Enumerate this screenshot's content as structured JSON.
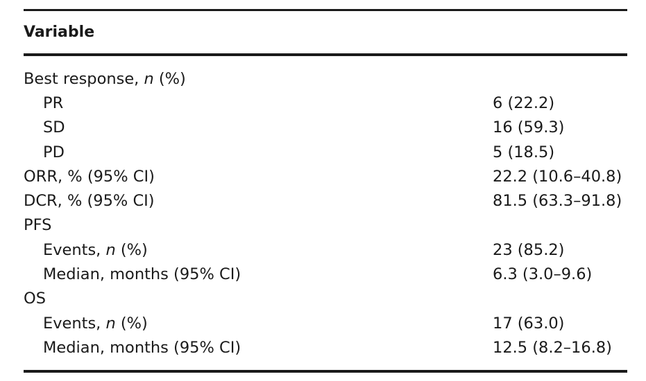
{
  "table": {
    "header": "Variable",
    "rows": [
      {
        "indent": false,
        "label_pre": "Best response, ",
        "label_italic": "n",
        "label_post": " (%)",
        "value": ""
      },
      {
        "indent": true,
        "label_pre": "PR",
        "label_italic": "",
        "label_post": "",
        "value": "6 (22.2)"
      },
      {
        "indent": true,
        "label_pre": "SD",
        "label_italic": "",
        "label_post": "",
        "value": "16 (59.3)"
      },
      {
        "indent": true,
        "label_pre": "PD",
        "label_italic": "",
        "label_post": "",
        "value": "5 (18.5)"
      },
      {
        "indent": false,
        "label_pre": "ORR, % (95% CI)",
        "label_italic": "",
        "label_post": "",
        "value": "22.2 (10.6–40.8)"
      },
      {
        "indent": false,
        "label_pre": "DCR, % (95% CI)",
        "label_italic": "",
        "label_post": "",
        "value": "81.5 (63.3–91.8)"
      },
      {
        "indent": false,
        "label_pre": "PFS",
        "label_italic": "",
        "label_post": "",
        "value": ""
      },
      {
        "indent": true,
        "label_pre": "Events, ",
        "label_italic": "n",
        "label_post": " (%)",
        "value": "23 (85.2)"
      },
      {
        "indent": true,
        "label_pre": "Median, months (95% CI)",
        "label_italic": "",
        "label_post": "",
        "value": "6.3 (3.0–9.6)"
      },
      {
        "indent": false,
        "label_pre": "OS",
        "label_italic": "",
        "label_post": "",
        "value": ""
      },
      {
        "indent": true,
        "label_pre": "Events, ",
        "label_italic": "n",
        "label_post": " (%)",
        "value": "17 (63.0)"
      },
      {
        "indent": true,
        "label_pre": "Median, months (95% CI)",
        "label_italic": "",
        "label_post": "",
        "value": "12.5 (8.2–16.8)"
      }
    ]
  }
}
